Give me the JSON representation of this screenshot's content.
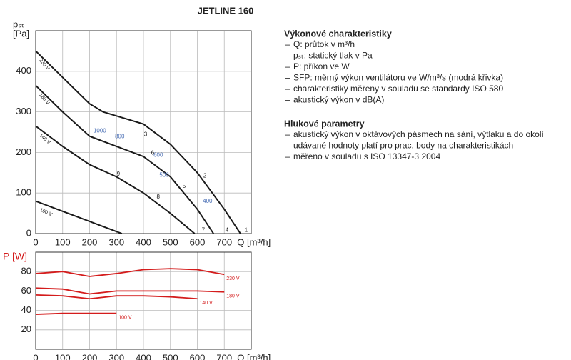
{
  "chart_data": [
    {
      "type": "line",
      "title": "JETLINE 160",
      "y_label": "pₛₜ",
      "y_unit": "[Pa]",
      "x_label": "Q [m³/h]",
      "xlim": [
        0,
        800
      ],
      "ylim": [
        0,
        500
      ],
      "xticks": [
        0,
        100,
        200,
        300,
        400,
        500,
        600,
        700
      ],
      "yticks": [
        0,
        100,
        200,
        300,
        400
      ],
      "grid": true,
      "series": [
        {
          "name": "230 V",
          "color": "#1a1a1a",
          "x": [
            0,
            100,
            200,
            250,
            300,
            400,
            500,
            600,
            700,
            760
          ],
          "values": [
            450,
            385,
            320,
            300,
            290,
            270,
            220,
            150,
            60,
            0
          ]
        },
        {
          "name": "180 V",
          "color": "#1a1a1a",
          "x": [
            0,
            100,
            200,
            300,
            400,
            500,
            600,
            660
          ],
          "values": [
            365,
            300,
            240,
            215,
            190,
            140,
            60,
            0
          ]
        },
        {
          "name": "140 V",
          "color": "#1a1a1a",
          "x": [
            0,
            100,
            200,
            300,
            400,
            500,
            590
          ],
          "values": [
            265,
            215,
            170,
            140,
            100,
            50,
            0
          ]
        },
        {
          "name": "100 V",
          "color": "#1a1a1a",
          "x": [
            0,
            100,
            200,
            300,
            320
          ],
          "values": [
            80,
            55,
            30,
            5,
            0
          ]
        }
      ],
      "annotations": [
        {
          "text": "1",
          "x": 781,
          "y": 8,
          "color": "#1a1a1a"
        },
        {
          "text": "4",
          "x": 710,
          "y": 8,
          "color": "#1a1a1a"
        },
        {
          "text": "7",
          "x": 622,
          "y": 8,
          "color": "#1a1a1a"
        },
        {
          "text": "2",
          "x": 628,
          "y": 142,
          "color": "#1a1a1a"
        },
        {
          "text": "5",
          "x": 551,
          "y": 116,
          "color": "#1a1a1a"
        },
        {
          "text": "3",
          "x": 408,
          "y": 244,
          "color": "#1a1a1a"
        },
        {
          "text": "6",
          "x": 434,
          "y": 198,
          "color": "#1a1a1a"
        },
        {
          "text": "8",
          "x": 455,
          "y": 90,
          "color": "#1a1a1a"
        },
        {
          "text": "9",
          "x": 307,
          "y": 146,
          "color": "#1a1a1a"
        },
        {
          "text": "1000",
          "x": 238,
          "y": 253,
          "color": "#4a6fb5"
        },
        {
          "text": "800",
          "x": 312,
          "y": 239,
          "color": "#4a6fb5"
        },
        {
          "text": "600",
          "x": 455,
          "y": 193,
          "color": "#4a6fb5"
        },
        {
          "text": "500",
          "x": 477,
          "y": 144,
          "color": "#4a6fb5"
        },
        {
          "text": "400",
          "x": 638,
          "y": 79,
          "color": "#4a6fb5"
        }
      ]
    },
    {
      "type": "line",
      "y_label": "P [W]",
      "y_label_color": "#d41c1c",
      "x_label": "Q [m³/h]",
      "xlim": [
        0,
        800
      ],
      "ylim": [
        0,
        100
      ],
      "xticks": [
        0,
        100,
        200,
        300,
        400,
        500,
        600,
        700
      ],
      "yticks": [
        20,
        40,
        60,
        80
      ],
      "grid": true,
      "series": [
        {
          "name": "230 V",
          "color": "#d41c1c",
          "x": [
            0,
            100,
            200,
            300,
            400,
            500,
            600,
            700
          ],
          "values": [
            78,
            80,
            75,
            78,
            82,
            83,
            82,
            77
          ]
        },
        {
          "name": "180 V",
          "color": "#d41c1c",
          "x": [
            0,
            100,
            200,
            300,
            400,
            500,
            600,
            700
          ],
          "values": [
            63,
            62,
            57,
            60,
            60,
            60,
            60,
            59
          ]
        },
        {
          "name": "140 V",
          "color": "#d41c1c",
          "x": [
            0,
            100,
            200,
            300,
            400,
            500,
            600
          ],
          "values": [
            56,
            55,
            52,
            55,
            55,
            54,
            52
          ]
        },
        {
          "name": "100 V",
          "color": "#d41c1c",
          "x": [
            0,
            100,
            200,
            300
          ],
          "values": [
            36,
            37,
            37,
            37
          ]
        }
      ]
    }
  ],
  "text_panel": {
    "sections": [
      {
        "heading": "Výkonové charakteristiky",
        "items": [
          "Q: průtok v m³/h",
          "pₛₜ: statický tlak v Pa",
          "P: příkon ve W",
          "SFP: měrný výkon ventilátoru ve W/m³/s (modrá křivka)",
          "charakteristiky měřeny v souladu se standardy ISO 580",
          "akustický výkon v dB(A)"
        ]
      },
      {
        "heading": "Hlukové parametry",
        "items": [
          "akustický výkon v oktávových pásmech na sání, výtlaku a do okolí",
          "udávané hodnoty platí pro prac. body na charakteristikách",
          "měřeno v souladu s ISO 13347-3 2004"
        ]
      }
    ]
  }
}
